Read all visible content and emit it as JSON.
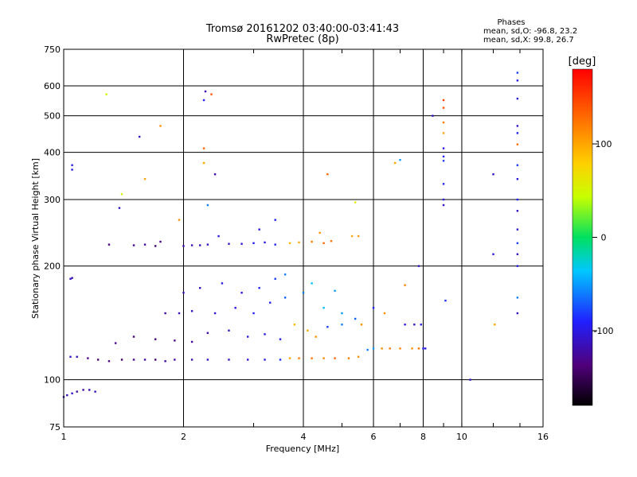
{
  "chart_data": {
    "type": "scatter",
    "title": "Tromsø 20161202 03:40:00-03:41:43",
    "subtitle": "RwPretec (8p)",
    "xlabel": "Frequency [MHz]",
    "ylabel": "Stationary phase Virtual Height [km]",
    "x_scale": "log",
    "y_scale": "log",
    "xlim": [
      1,
      16
    ],
    "ylim": [
      75,
      750
    ],
    "x_ticks": [
      1,
      2,
      4,
      6,
      8,
      10,
      16
    ],
    "y_ticks": [
      75,
      100,
      200,
      300,
      400,
      500,
      600,
      750
    ],
    "grid": true,
    "legend": {
      "heading": "Phases",
      "lines": [
        "mean, sd,O: -96.8, 23.2",
        "mean, sd,X:  99.8, 26.7"
      ]
    },
    "colorbar": {
      "label": "[deg]",
      "range": [
        -180,
        180
      ],
      "ticks": [
        100,
        0,
        -100
      ]
    },
    "series": [
      {
        "points": [
          {
            "x": 1.0,
            "y": 90,
            "phase": -120
          },
          {
            "x": 1.02,
            "y": 91,
            "phase": -115
          },
          {
            "x": 1.05,
            "y": 92,
            "phase": -110
          },
          {
            "x": 1.08,
            "y": 93,
            "phase": -120
          },
          {
            "x": 1.12,
            "y": 94,
            "phase": -125
          },
          {
            "x": 1.16,
            "y": 94,
            "phase": -118
          },
          {
            "x": 1.2,
            "y": 93,
            "phase": -112
          },
          {
            "x": 1.04,
            "y": 115,
            "phase": -105
          },
          {
            "x": 1.08,
            "y": 115,
            "phase": -110
          },
          {
            "x": 1.15,
            "y": 114,
            "phase": -130
          },
          {
            "x": 1.22,
            "y": 113,
            "phase": -140
          },
          {
            "x": 1.3,
            "y": 112,
            "phase": -135
          },
          {
            "x": 1.4,
            "y": 113,
            "phase": -145
          },
          {
            "x": 1.5,
            "y": 113,
            "phase": -130
          },
          {
            "x": 1.6,
            "y": 113,
            "phase": -125
          },
          {
            "x": 1.7,
            "y": 113,
            "phase": -140
          },
          {
            "x": 1.8,
            "y": 112,
            "phase": -120
          },
          {
            "x": 1.9,
            "y": 113,
            "phase": -120
          },
          {
            "x": 2.1,
            "y": 113,
            "phase": -118
          },
          {
            "x": 2.3,
            "y": 113,
            "phase": -110
          },
          {
            "x": 2.6,
            "y": 113,
            "phase": -112
          },
          {
            "x": 2.9,
            "y": 113,
            "phase": -105
          },
          {
            "x": 3.2,
            "y": 113,
            "phase": -100
          },
          {
            "x": 3.5,
            "y": 113,
            "phase": -85
          },
          {
            "x": 3.7,
            "y": 114,
            "phase": 100
          },
          {
            "x": 3.9,
            "y": 114,
            "phase": 120
          },
          {
            "x": 4.2,
            "y": 114,
            "phase": 125
          },
          {
            "x": 4.5,
            "y": 114,
            "phase": 115
          },
          {
            "x": 4.8,
            "y": 114,
            "phase": 130
          },
          {
            "x": 5.2,
            "y": 114,
            "phase": 120
          },
          {
            "x": 5.5,
            "y": 115,
            "phase": 110
          },
          {
            "x": 5.8,
            "y": 120,
            "phase": -60
          },
          {
            "x": 6.0,
            "y": 121,
            "phase": -50
          },
          {
            "x": 6.3,
            "y": 121,
            "phase": 110
          },
          {
            "x": 6.6,
            "y": 121,
            "phase": 120
          },
          {
            "x": 7.0,
            "y": 121,
            "phase": 115
          },
          {
            "x": 7.5,
            "y": 121,
            "phase": 110
          },
          {
            "x": 7.8,
            "y": 121,
            "phase": 125
          },
          {
            "x": 8.0,
            "y": 121,
            "phase": -90
          },
          {
            "x": 8.1,
            "y": 121,
            "phase": -100
          },
          {
            "x": 1.35,
            "y": 125,
            "phase": -130
          },
          {
            "x": 1.5,
            "y": 130,
            "phase": -140
          },
          {
            "x": 1.7,
            "y": 128,
            "phase": -135
          },
          {
            "x": 1.9,
            "y": 127,
            "phase": -130
          },
          {
            "x": 2.1,
            "y": 126,
            "phase": -125
          },
          {
            "x": 2.3,
            "y": 133,
            "phase": -120
          },
          {
            "x": 2.6,
            "y": 135,
            "phase": -110
          },
          {
            "x": 2.9,
            "y": 130,
            "phase": -100
          },
          {
            "x": 3.2,
            "y": 132,
            "phase": -100
          },
          {
            "x": 3.5,
            "y": 128,
            "phase": -95
          },
          {
            "x": 3.8,
            "y": 140,
            "phase": 90
          },
          {
            "x": 4.1,
            "y": 135,
            "phase": 100
          },
          {
            "x": 4.3,
            "y": 130,
            "phase": 110
          },
          {
            "x": 4.6,
            "y": 138,
            "phase": -80
          },
          {
            "x": 5.0,
            "y": 140,
            "phase": -60
          },
          {
            "x": 5.4,
            "y": 145,
            "phase": -70
          },
          {
            "x": 1.8,
            "y": 150,
            "phase": -120
          },
          {
            "x": 1.95,
            "y": 150,
            "phase": -115
          },
          {
            "x": 2.1,
            "y": 152,
            "phase": -110
          },
          {
            "x": 2.4,
            "y": 150,
            "phase": -105
          },
          {
            "x": 2.7,
            "y": 155,
            "phase": -100
          },
          {
            "x": 3.0,
            "y": 150,
            "phase": -95
          },
          {
            "x": 3.3,
            "y": 160,
            "phase": -90
          },
          {
            "x": 3.6,
            "y": 165,
            "phase": -70
          },
          {
            "x": 4.0,
            "y": 170,
            "phase": -60
          },
          {
            "x": 4.5,
            "y": 155,
            "phase": -40
          },
          {
            "x": 5.0,
            "y": 150,
            "phase": -50
          },
          {
            "x": 2.0,
            "y": 170,
            "phase": -115
          },
          {
            "x": 2.2,
            "y": 175,
            "phase": -110
          },
          {
            "x": 2.5,
            "y": 180,
            "phase": -100
          },
          {
            "x": 2.8,
            "y": 170,
            "phase": -100
          },
          {
            "x": 3.1,
            "y": 175,
            "phase": -90
          },
          {
            "x": 3.4,
            "y": 185,
            "phase": -80
          },
          {
            "x": 3.6,
            "y": 190,
            "phase": -60
          },
          {
            "x": 4.2,
            "y": 180,
            "phase": -40
          },
          {
            "x": 4.8,
            "y": 172,
            "phase": -50
          },
          {
            "x": 5.6,
            "y": 140,
            "phase": 110
          },
          {
            "x": 6.0,
            "y": 155,
            "phase": -90
          },
          {
            "x": 6.4,
            "y": 150,
            "phase": 110
          },
          {
            "x": 7.2,
            "y": 140,
            "phase": -100
          },
          {
            "x": 7.6,
            "y": 140,
            "phase": -110
          },
          {
            "x": 7.9,
            "y": 140,
            "phase": -95
          },
          {
            "x": 9.1,
            "y": 162,
            "phase": -85
          },
          {
            "x": 1.04,
            "y": 185,
            "phase": -110
          },
          {
            "x": 1.05,
            "y": 186,
            "phase": -115
          },
          {
            "x": 7.2,
            "y": 178,
            "phase": 115
          },
          {
            "x": 7.8,
            "y": 200,
            "phase": -110
          },
          {
            "x": 1.3,
            "y": 228,
            "phase": -135
          },
          {
            "x": 1.5,
            "y": 227,
            "phase": -130
          },
          {
            "x": 1.6,
            "y": 228,
            "phase": -125
          },
          {
            "x": 1.7,
            "y": 226,
            "phase": -140
          },
          {
            "x": 1.75,
            "y": 232,
            "phase": -130
          },
          {
            "x": 2.0,
            "y": 226,
            "phase": -120
          },
          {
            "x": 2.1,
            "y": 227,
            "phase": -115
          },
          {
            "x": 2.2,
            "y": 227,
            "phase": -110
          },
          {
            "x": 2.3,
            "y": 228,
            "phase": -112
          },
          {
            "x": 2.45,
            "y": 240,
            "phase": -100
          },
          {
            "x": 2.6,
            "y": 229,
            "phase": -105
          },
          {
            "x": 2.8,
            "y": 229,
            "phase": -100
          },
          {
            "x": 3.0,
            "y": 230,
            "phase": -95
          },
          {
            "x": 3.2,
            "y": 231,
            "phase": -100
          },
          {
            "x": 3.4,
            "y": 228,
            "phase": -90
          },
          {
            "x": 3.7,
            "y": 230,
            "phase": 90
          },
          {
            "x": 3.9,
            "y": 231,
            "phase": 100
          },
          {
            "x": 4.2,
            "y": 232,
            "phase": 120
          },
          {
            "x": 4.5,
            "y": 230,
            "phase": 130
          },
          {
            "x": 4.7,
            "y": 233,
            "phase": 125
          },
          {
            "x": 3.1,
            "y": 250,
            "phase": -100
          },
          {
            "x": 3.4,
            "y": 265,
            "phase": -90
          },
          {
            "x": 4.4,
            "y": 245,
            "phase": 110
          },
          {
            "x": 5.3,
            "y": 240,
            "phase": 100
          },
          {
            "x": 5.5,
            "y": 240,
            "phase": 105
          },
          {
            "x": 1.05,
            "y": 360,
            "phase": -100
          },
          {
            "x": 1.05,
            "y": 370,
            "phase": -95
          },
          {
            "x": 1.38,
            "y": 285,
            "phase": -110
          },
          {
            "x": 1.4,
            "y": 310,
            "phase": 50
          },
          {
            "x": 1.55,
            "y": 440,
            "phase": -110
          },
          {
            "x": 1.6,
            "y": 340,
            "phase": 100
          },
          {
            "x": 1.75,
            "y": 470,
            "phase": 110
          },
          {
            "x": 1.95,
            "y": 265,
            "phase": 110
          },
          {
            "x": 2.25,
            "y": 410,
            "phase": 130
          },
          {
            "x": 2.25,
            "y": 375,
            "phase": 100
          },
          {
            "x": 2.25,
            "y": 550,
            "phase": -90
          },
          {
            "x": 2.27,
            "y": 580,
            "phase": -120
          },
          {
            "x": 2.35,
            "y": 570,
            "phase": 140
          },
          {
            "x": 2.4,
            "y": 350,
            "phase": -120
          },
          {
            "x": 2.3,
            "y": 290,
            "phase": -60
          },
          {
            "x": 1.28,
            "y": 570,
            "phase": 50
          },
          {
            "x": 4.6,
            "y": 350,
            "phase": 130
          },
          {
            "x": 5.4,
            "y": 295,
            "phase": 60
          },
          {
            "x": 6.8,
            "y": 375,
            "phase": 100
          },
          {
            "x": 7.0,
            "y": 382,
            "phase": -50
          },
          {
            "x": 8.45,
            "y": 500,
            "phase": -110
          },
          {
            "x": 9.0,
            "y": 525,
            "phase": 140
          },
          {
            "x": 9.0,
            "y": 550,
            "phase": 150
          },
          {
            "x": 9.0,
            "y": 480,
            "phase": 120
          },
          {
            "x": 9.0,
            "y": 450,
            "phase": 100
          },
          {
            "x": 9.0,
            "y": 410,
            "phase": -100
          },
          {
            "x": 9.0,
            "y": 390,
            "phase": -90
          },
          {
            "x": 9.0,
            "y": 380,
            "phase": -80
          },
          {
            "x": 9.0,
            "y": 330,
            "phase": -90
          },
          {
            "x": 9.0,
            "y": 300,
            "phase": -100
          },
          {
            "x": 9.0,
            "y": 290,
            "phase": -110
          },
          {
            "x": 10.5,
            "y": 100,
            "phase": -110
          },
          {
            "x": 12.0,
            "y": 215,
            "phase": -100
          },
          {
            "x": 12.0,
            "y": 350,
            "phase": -110
          },
          {
            "x": 12.1,
            "y": 140,
            "phase": 100
          },
          {
            "x": 13.8,
            "y": 650,
            "phase": -80
          },
          {
            "x": 13.8,
            "y": 620,
            "phase": -95
          },
          {
            "x": 13.8,
            "y": 555,
            "phase": -100
          },
          {
            "x": 13.8,
            "y": 470,
            "phase": -110
          },
          {
            "x": 13.8,
            "y": 450,
            "phase": -90
          },
          {
            "x": 13.8,
            "y": 420,
            "phase": 130
          },
          {
            "x": 13.8,
            "y": 370,
            "phase": -80
          },
          {
            "x": 13.8,
            "y": 340,
            "phase": -100
          },
          {
            "x": 13.8,
            "y": 300,
            "phase": -90
          },
          {
            "x": 13.8,
            "y": 280,
            "phase": -110
          },
          {
            "x": 13.8,
            "y": 250,
            "phase": -100
          },
          {
            "x": 13.8,
            "y": 230,
            "phase": -80
          },
          {
            "x": 13.8,
            "y": 215,
            "phase": -110
          },
          {
            "x": 13.8,
            "y": 200,
            "phase": -100
          },
          {
            "x": 13.8,
            "y": 165,
            "phase": -60
          },
          {
            "x": 13.8,
            "y": 150,
            "phase": -110
          }
        ]
      }
    ]
  }
}
